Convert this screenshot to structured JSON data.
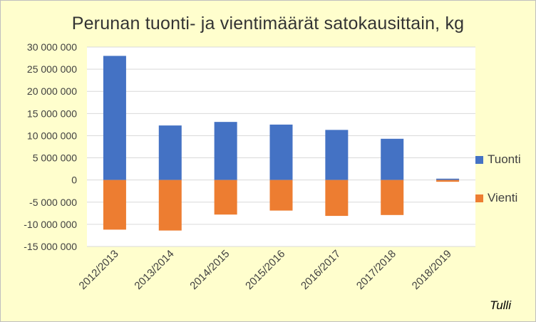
{
  "chart_data": {
    "type": "bar",
    "title": "Perunan tuonti- ja vientimäärät satokausittain, kg",
    "categories": [
      "2012/2013",
      "2013/2014",
      "2014/2015",
      "2015/2016",
      "2016/2017",
      "2017/2018",
      "2018/2019"
    ],
    "series": [
      {
        "name": "Tuonti",
        "color": "#4472c4",
        "values": [
          28000000,
          12300000,
          13100000,
          12500000,
          11300000,
          9300000,
          300000
        ]
      },
      {
        "name": "Vienti",
        "color": "#ed7d31",
        "values": [
          -11200000,
          -11400000,
          -7800000,
          -6900000,
          -8100000,
          -7900000,
          -400000
        ]
      }
    ],
    "y_ticks": [
      "30 000 000",
      "25 000 000",
      "20 000 000",
      "15 000 000",
      "10 000 000",
      "5 000 000",
      "0",
      "-5 000 000",
      "-10 000 000",
      "-15 000 000"
    ],
    "ylim": [
      -15000000,
      30000000
    ],
    "grid": true,
    "legend": "right",
    "source": "Tulli"
  }
}
